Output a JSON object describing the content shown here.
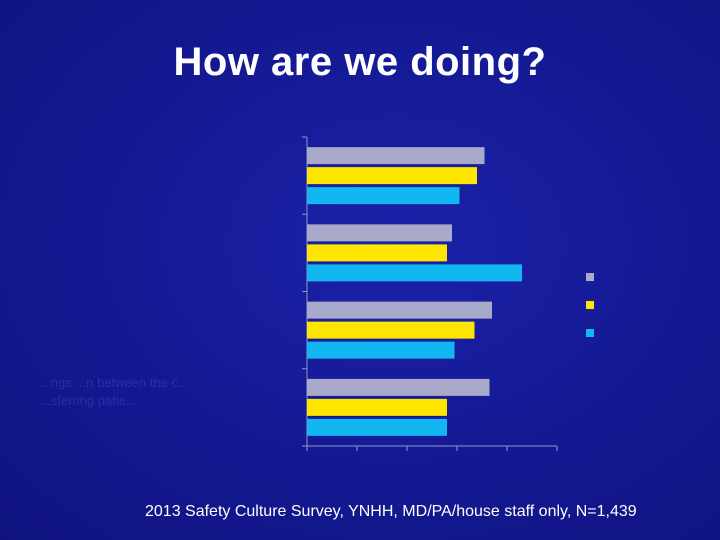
{
  "slide": {
    "title": "How are we doing?",
    "footer": "2013 Safety Culture Survey, YNHH, MD/PA/house staff only, N=1,439",
    "left_text_lines": [
      "...ngs ...n between the c...",
      "...sferring patie..."
    ]
  },
  "colors": {
    "background": "#13178f",
    "axis": "#8f96c9",
    "series": [
      "#a9a9c9",
      "#ffe600",
      "#12b6f0"
    ],
    "title_text": "#ffffff"
  },
  "chart_data": {
    "type": "bar",
    "orientation": "horizontal",
    "categories": [
      "",
      "",
      "",
      ""
    ],
    "series": [
      {
        "values": [
          35.5,
          29,
          37,
          36.5
        ]
      },
      {
        "values": [
          34,
          28,
          33.5,
          28
        ]
      },
      {
        "values": [
          30.5,
          43,
          29.5,
          28
        ]
      }
    ],
    "xlim": [
      0,
      50
    ],
    "x_tick_step": 10,
    "legend_position": "right",
    "grid": false
  }
}
